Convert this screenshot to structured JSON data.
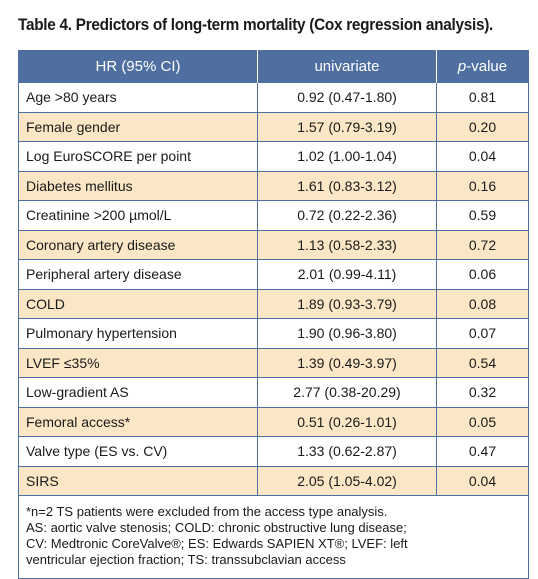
{
  "title": "Table 4. Predictors of long-term mortality (Cox regression analysis).",
  "header": {
    "col1": "HR (95% CI)",
    "col2": "univariate",
    "col3_italic": "p",
    "col3_rest": "-value"
  },
  "rows": [
    {
      "label": "Age >80 years",
      "hr": "0.92 (0.47-1.80)",
      "p": "0.81"
    },
    {
      "label": "Female gender",
      "hr": "1.57 (0.79-3.19)",
      "p": "0.20"
    },
    {
      "label": "Log EuroSCORE per point",
      "hr": "1.02 (1.00-1.04)",
      "p": "0.04"
    },
    {
      "label": "Diabetes mellitus",
      "hr": "1.61 (0.83-3.12)",
      "p": "0.16"
    },
    {
      "label": "Creatinine >200 µmol/L",
      "hr": "0.72 (0.22-2.36)",
      "p": "0.59"
    },
    {
      "label": "Coronary artery disease",
      "hr": "1.13 (0.58-2.33)",
      "p": "0.72"
    },
    {
      "label": "Peripheral artery disease",
      "hr": "2.01 (0.99-4.11)",
      "p": "0.06"
    },
    {
      "label": "COLD",
      "hr": "1.89 (0.93-3.79)",
      "p": "0.08"
    },
    {
      "label": "Pulmonary hypertension",
      "hr": "1.90 (0.96-3.80)",
      "p": "0.07"
    },
    {
      "label": "LVEF ≤35%",
      "hr": "1.39 (0.49-3.97)",
      "p": "0.54"
    },
    {
      "label": "Low-gradient AS",
      "hr": "2.77 (0.38-20.29)",
      "p": "0.32"
    },
    {
      "label": "Femoral access*",
      "hr": "0.51 (0.26-1.01)",
      "p": "0.05"
    },
    {
      "label": "Valve type (ES vs. CV)",
      "hr": "1.33 (0.62-2.87)",
      "p": "0.47"
    },
    {
      "label": "SIRS",
      "hr": "2.05 (1.05-4.02)",
      "p": "0.04"
    }
  ],
  "footnote_lines": [
    "*n=2 TS patients were excluded from the access type analysis.",
    "AS: aortic valve stenosis; COLD: chronic obstructive lung disease;",
    "CV: Medtronic CoreValve®; ES: Edwards SAPIEN XT®; LVEF: left",
    "ventricular ejection fraction; TS: transsubclavian access"
  ],
  "colors": {
    "header_bg": "#4f6fa0",
    "stripe_bg": "#fbe7c6",
    "border": "#4f6fa0"
  }
}
